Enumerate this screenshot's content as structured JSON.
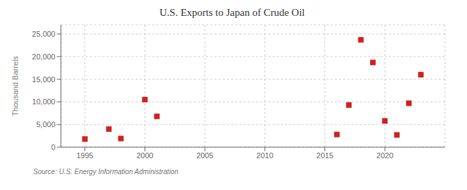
{
  "chart_data": {
    "type": "scatter",
    "title": "U.S. Exports to Japan of Crude Oil",
    "y_label": "Thousand Barrels",
    "annotation": "Source: U.S. Energy Information Administration",
    "x": [
      1995,
      1997,
      1998,
      2000,
      2001,
      2016,
      2017,
      2018,
      2019,
      2020,
      2021,
      2022,
      2023
    ],
    "values": [
      1800,
      4000,
      1900,
      10500,
      6800,
      2800,
      9300,
      23700,
      18700,
      5800,
      2700,
      9700,
      16000
    ],
    "color": "#cc2222",
    "marker": "square",
    "xlim": [
      1993,
      2025
    ],
    "ylim": [
      0,
      27000
    ],
    "xticks": [
      1995,
      2000,
      2005,
      2010,
      2015,
      2020
    ],
    "yticks": [
      0,
      {
        "value": 5000,
        "label": "5,000"
      },
      {
        "value": 10000,
        "label": "10,000"
      },
      {
        "value": 15000,
        "label": "15,000"
      },
      {
        "value": 20000,
        "label": "20,000"
      },
      {
        "value": 25000,
        "label": "25,000"
      }
    ],
    "grid": true
  }
}
